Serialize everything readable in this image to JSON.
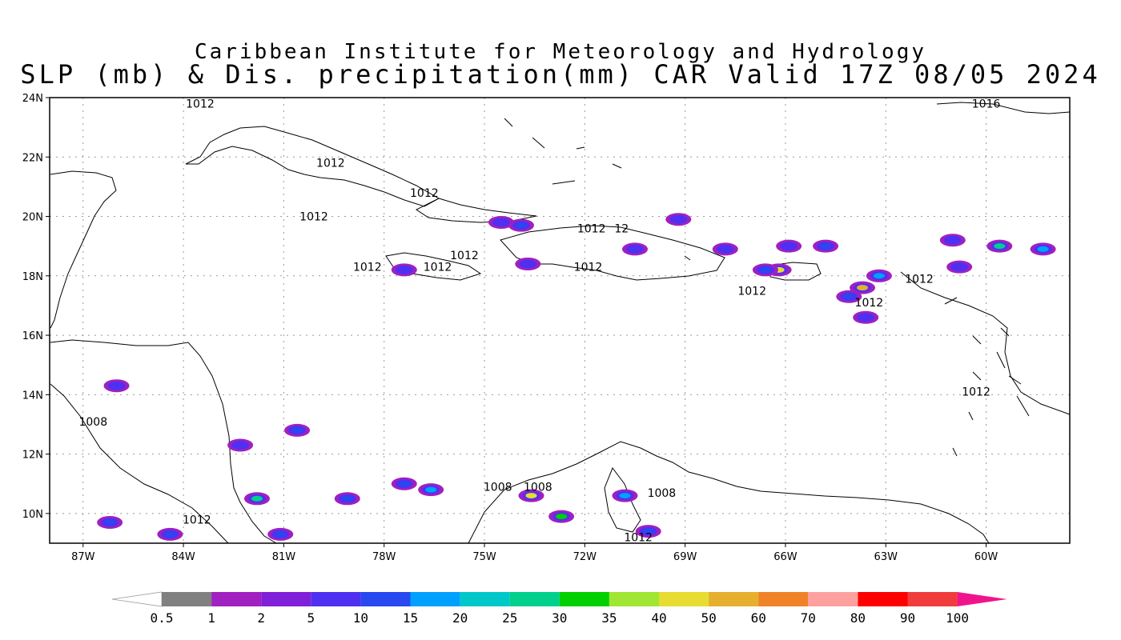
{
  "title": {
    "line1": "Caribbean Institute for Meteorology and Hydrology",
    "line2": "SLP (mb) & Dis. precipitation(mm) CAR Valid 17Z 08/05 2024"
  },
  "map": {
    "lon_range": [
      -88,
      -57.5
    ],
    "lat_range": [
      9,
      24
    ],
    "lat_ticks": [
      {
        "value": 24,
        "label": "24N"
      },
      {
        "value": 22,
        "label": "22N"
      },
      {
        "value": 20,
        "label": "20N"
      },
      {
        "value": 18,
        "label": "18N"
      },
      {
        "value": 16,
        "label": "16N"
      },
      {
        "value": 14,
        "label": "14N"
      },
      {
        "value": 12,
        "label": "12N"
      },
      {
        "value": 10,
        "label": "10N"
      }
    ],
    "lon_ticks": [
      {
        "value": -87,
        "label": "87W"
      },
      {
        "value": -84,
        "label": "84W"
      },
      {
        "value": -81,
        "label": "81W"
      },
      {
        "value": -78,
        "label": "78W"
      },
      {
        "value": -75,
        "label": "75W"
      },
      {
        "value": -72,
        "label": "72W"
      },
      {
        "value": -69,
        "label": "69W"
      },
      {
        "value": -66,
        "label": "66W"
      },
      {
        "value": -63,
        "label": "63W"
      },
      {
        "value": -60,
        "label": "60W"
      }
    ],
    "grid": "dotted",
    "isobar_labels": [
      {
        "text": "1012",
        "lon": -83.5,
        "lat": 23.8
      },
      {
        "text": "1016",
        "lon": -60.0,
        "lat": 23.8
      },
      {
        "text": "1012",
        "lon": -79.6,
        "lat": 21.8
      },
      {
        "text": "1012",
        "lon": -76.8,
        "lat": 20.8
      },
      {
        "text": "1012",
        "lon": -80.1,
        "lat": 20.0
      },
      {
        "text": "1012",
        "lon": -71.8,
        "lat": 19.6
      },
      {
        "text": "12",
        "lon": -70.9,
        "lat": 19.6
      },
      {
        "text": "1012",
        "lon": -75.6,
        "lat": 18.7
      },
      {
        "text": "1012",
        "lon": -78.5,
        "lat": 18.3
      },
      {
        "text": "1012",
        "lon": -76.4,
        "lat": 18.3
      },
      {
        "text": "1012",
        "lon": -71.9,
        "lat": 18.3
      },
      {
        "text": "1012",
        "lon": -62.0,
        "lat": 17.9
      },
      {
        "text": "1012",
        "lon": -67.0,
        "lat": 17.5
      },
      {
        "text": "1012",
        "lon": -63.5,
        "lat": 17.1
      },
      {
        "text": "1012",
        "lon": -60.3,
        "lat": 14.1
      },
      {
        "text": "1008",
        "lon": -86.7,
        "lat": 13.1
      },
      {
        "text": "1008",
        "lon": -74.6,
        "lat": 10.9
      },
      {
        "text": "1008",
        "lon": -73.4,
        "lat": 10.9
      },
      {
        "text": "1008",
        "lon": -69.7,
        "lat": 10.7
      },
      {
        "text": "1012",
        "lon": -83.6,
        "lat": 9.8
      },
      {
        "text": "1012",
        "lon": -70.4,
        "lat": 9.2
      }
    ],
    "precip_cells": [
      {
        "lon": -73.9,
        "lat": 19.7,
        "mm": 10
      },
      {
        "lon": -74.5,
        "lat": 19.8,
        "mm": 5
      },
      {
        "lon": -69.2,
        "lat": 19.9,
        "mm": 5
      },
      {
        "lon": -66.2,
        "lat": 18.2,
        "mm": 40
      },
      {
        "lon": -66.6,
        "lat": 18.2,
        "mm": 10
      },
      {
        "lon": -63.7,
        "lat": 17.6,
        "mm": 50
      },
      {
        "lon": -64.1,
        "lat": 17.3,
        "mm": 10
      },
      {
        "lon": -63.2,
        "lat": 18.0,
        "mm": 15
      },
      {
        "lon": -64.8,
        "lat": 19.0,
        "mm": 10
      },
      {
        "lon": -65.9,
        "lat": 19.0,
        "mm": 5
      },
      {
        "lon": -67.8,
        "lat": 18.9,
        "mm": 5
      },
      {
        "lon": -60.8,
        "lat": 18.3,
        "mm": 5
      },
      {
        "lon": -59.6,
        "lat": 19.0,
        "mm": 25
      },
      {
        "lon": -58.3,
        "lat": 18.9,
        "mm": 15
      },
      {
        "lon": -70.5,
        "lat": 18.9,
        "mm": 5
      },
      {
        "lon": -73.7,
        "lat": 18.4,
        "mm": 5
      },
      {
        "lon": -77.4,
        "lat": 18.2,
        "mm": 5
      },
      {
        "lon": -77.4,
        "lat": 11.0,
        "mm": 10
      },
      {
        "lon": -79.1,
        "lat": 10.5,
        "mm": 10
      },
      {
        "lon": -76.6,
        "lat": 10.8,
        "mm": 15
      },
      {
        "lon": -81.8,
        "lat": 10.5,
        "mm": 25
      },
      {
        "lon": -81.1,
        "lat": 9.3,
        "mm": 10
      },
      {
        "lon": -73.6,
        "lat": 10.6,
        "mm": 40
      },
      {
        "lon": -72.7,
        "lat": 9.9,
        "mm": 30
      },
      {
        "lon": -70.8,
        "lat": 10.6,
        "mm": 15
      },
      {
        "lon": -70.1,
        "lat": 9.4,
        "mm": 10
      },
      {
        "lon": -86.2,
        "lat": 9.7,
        "mm": 10
      },
      {
        "lon": -84.4,
        "lat": 9.3,
        "mm": 10
      },
      {
        "lon": -80.6,
        "lat": 12.8,
        "mm": 10
      },
      {
        "lon": -86.0,
        "lat": 14.3,
        "mm": 5
      },
      {
        "lon": -82.3,
        "lat": 12.3,
        "mm": 5
      },
      {
        "lon": -63.6,
        "lat": 16.6,
        "mm": 5
      },
      {
        "lon": -61.0,
        "lat": 19.2,
        "mm": 5
      }
    ]
  },
  "colorbar": {
    "segments": [
      {
        "label": "0.5",
        "color": "#808080"
      },
      {
        "label": "1",
        "color": "#a020c0"
      },
      {
        "label": "2",
        "color": "#8020d8"
      },
      {
        "label": "5",
        "color": "#5030f0"
      },
      {
        "label": "10",
        "color": "#2848f0"
      },
      {
        "label": "15",
        "color": "#00a0ff"
      },
      {
        "label": "20",
        "color": "#00c8c8"
      },
      {
        "label": "25",
        "color": "#00d08c"
      },
      {
        "label": "30",
        "color": "#00d000"
      },
      {
        "label": "35",
        "color": "#a0e632"
      },
      {
        "label": "40",
        "color": "#e6dc32"
      },
      {
        "label": "50",
        "color": "#e6af2d"
      },
      {
        "label": "60",
        "color": "#f08228"
      },
      {
        "label": "70",
        "color": "#ffa0a0"
      },
      {
        "label": "80",
        "color": "#ff0000"
      },
      {
        "label": "90",
        "color": "#f03c3c"
      },
      {
        "label": "100",
        "color": "#f0148c"
      }
    ]
  }
}
